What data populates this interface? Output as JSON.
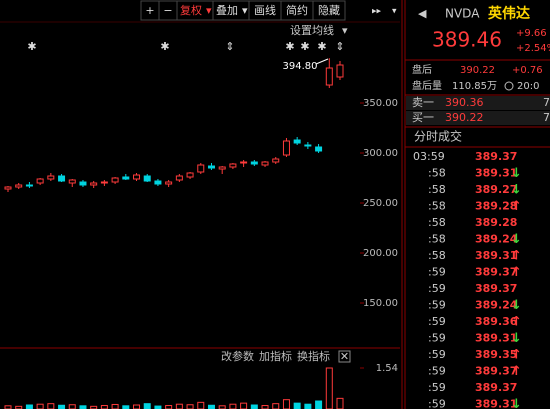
{
  "toolbar": {
    "buttons": [
      "+",
      "−",
      "复权",
      "叠加",
      "画线",
      "简约",
      "隐藏"
    ]
  },
  "chart": {
    "settings_label": "设置均线",
    "ylim": [
      108,
      413
    ],
    "yticks": [
      {
        "value": 350,
        "label": "350.00"
      },
      {
        "value": 300,
        "label": "300.00"
      },
      {
        "value": 250,
        "label": "250.00"
      },
      {
        "value": 200,
        "label": "200.00"
      },
      {
        "value": 150,
        "label": "150.00"
      }
    ],
    "high_label": "394.80",
    "candles": [
      [
        264,
        267,
        261,
        266
      ],
      [
        266,
        270,
        264,
        268
      ],
      [
        268,
        271,
        265,
        267
      ],
      [
        270,
        275,
        268,
        274
      ],
      [
        274,
        280,
        272,
        277
      ],
      [
        277,
        279,
        271,
        272
      ],
      [
        270,
        274,
        266,
        273
      ],
      [
        271,
        273,
        266,
        268
      ],
      [
        268,
        272,
        265,
        270
      ],
      [
        270,
        273,
        267,
        271
      ],
      [
        271,
        276,
        269,
        275
      ],
      [
        276,
        279,
        273,
        274
      ],
      [
        274,
        280,
        272,
        278
      ],
      [
        277,
        279,
        271,
        272
      ],
      [
        272,
        274,
        267,
        269
      ],
      [
        269,
        273,
        266,
        271
      ],
      [
        273,
        279,
        271,
        277
      ],
      [
        276,
        281,
        274,
        280
      ],
      [
        281,
        290,
        279,
        288
      ],
      [
        287,
        290,
        283,
        285
      ],
      [
        284,
        287,
        279,
        286
      ],
      [
        286,
        290,
        284,
        289
      ],
      [
        290,
        293,
        286,
        291
      ],
      [
        291,
        293,
        287,
        289
      ],
      [
        288,
        292,
        286,
        291
      ],
      [
        291,
        296,
        289,
        294
      ],
      [
        298,
        315,
        296,
        312
      ],
      [
        313,
        316,
        308,
        310
      ],
      [
        308,
        311,
        304,
        307
      ],
      [
        306,
        309,
        300,
        302
      ],
      [
        368,
        394.8,
        365,
        385
      ],
      [
        376,
        392,
        373,
        388
      ]
    ],
    "volume_ylim": [
      0,
      1.6
    ],
    "volume_ticks": [
      {
        "value": 1.54,
        "label": "1.54"
      }
    ],
    "volumes": [
      0.12,
      0.1,
      0.15,
      0.18,
      0.2,
      0.14,
      0.16,
      0.12,
      0.1,
      0.13,
      0.17,
      0.12,
      0.15,
      0.2,
      0.11,
      0.13,
      0.18,
      0.16,
      0.25,
      0.14,
      0.12,
      0.18,
      0.22,
      0.15,
      0.13,
      0.2,
      0.35,
      0.22,
      0.18,
      0.3,
      1.54,
      0.4
    ],
    "indicator_buttons": [
      "改参数",
      "加指标",
      "换指标"
    ]
  },
  "quote": {
    "symbol": "NVDA",
    "name": "英伟达",
    "price": "389.46",
    "change": "+9.66",
    "change_pct": "+2.54%",
    "after_hours_label": "盘后",
    "after_hours_price": "390.22",
    "after_hours_change": "+0.76",
    "after_volume_label": "盘后量",
    "after_volume": "110.85万",
    "time": "20:0",
    "ask_label": "卖一",
    "ask_price": "390.36",
    "ask_size": "7",
    "bid_label": "买一",
    "bid_price": "390.22",
    "bid_size": "7"
  },
  "trades": {
    "title": "分时成交",
    "rows": [
      [
        "03:59",
        "389.37",
        null
      ],
      [
        ":58",
        "389.31",
        "↓"
      ],
      [
        ":58",
        "389.27",
        "↓"
      ],
      [
        ":58",
        "389.28",
        "↑"
      ],
      [
        ":58",
        "389.28",
        null
      ],
      [
        ":58",
        "389.24",
        "↓"
      ],
      [
        ":58",
        "389.31",
        "↑"
      ],
      [
        ":59",
        "389.37",
        "↑"
      ],
      [
        ":59",
        "389.37",
        null
      ],
      [
        ":59",
        "389.24",
        "↓"
      ],
      [
        ":59",
        "389.36",
        "↑"
      ],
      [
        ":59",
        "389.31",
        "↓"
      ],
      [
        ":59",
        "389.35",
        "↑"
      ],
      [
        ":59",
        "389.37",
        "↑"
      ],
      [
        ":59",
        "389.37",
        null
      ],
      [
        ":59",
        "389.31",
        "↓"
      ]
    ]
  }
}
